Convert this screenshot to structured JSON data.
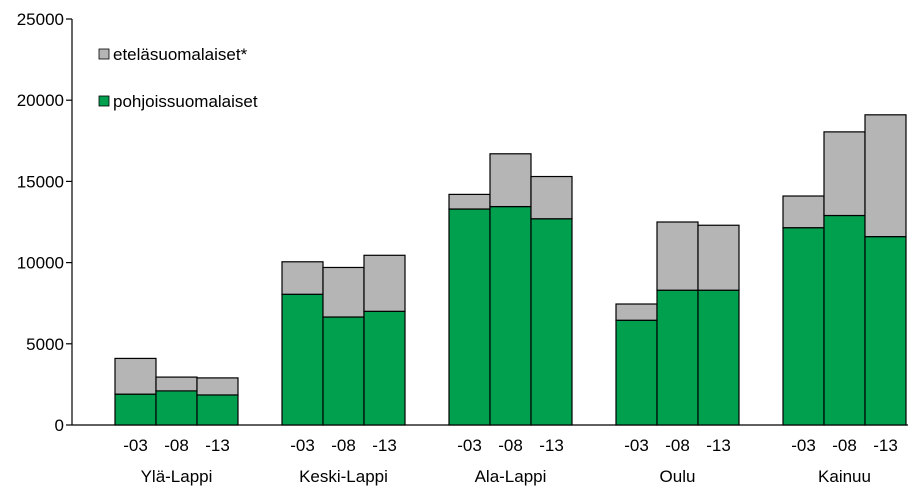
{
  "chart_data": {
    "type": "bar",
    "stacked": true,
    "groups": [
      "Ylä-Lappi",
      "Keski-Lappi",
      "Ala-Lappi",
      "Oulu",
      "Kainuu"
    ],
    "years": [
      "-03",
      "-08",
      "-13"
    ],
    "ylim": [
      0,
      25000
    ],
    "yticks": [
      0,
      5000,
      10000,
      15000,
      20000,
      25000
    ],
    "grid": false,
    "legend_position": "top-left",
    "series": [
      {
        "name": "pohjoissuomalaiset",
        "color": "#00a04f",
        "values": [
          [
            1900,
            2100,
            1850
          ],
          [
            8050,
            6650,
            7000
          ],
          [
            13300,
            13450,
            12700
          ],
          [
            6450,
            8300,
            8300
          ],
          [
            12150,
            12900,
            11600
          ]
        ]
      },
      {
        "name": "eteläsuomalaiset*",
        "color": "#b5b5b5",
        "values": [
          [
            2200,
            850,
            1050
          ],
          [
            2000,
            3050,
            3450
          ],
          [
            900,
            3250,
            2600
          ],
          [
            1000,
            4200,
            4000
          ],
          [
            1950,
            5150,
            7500
          ]
        ]
      }
    ]
  }
}
